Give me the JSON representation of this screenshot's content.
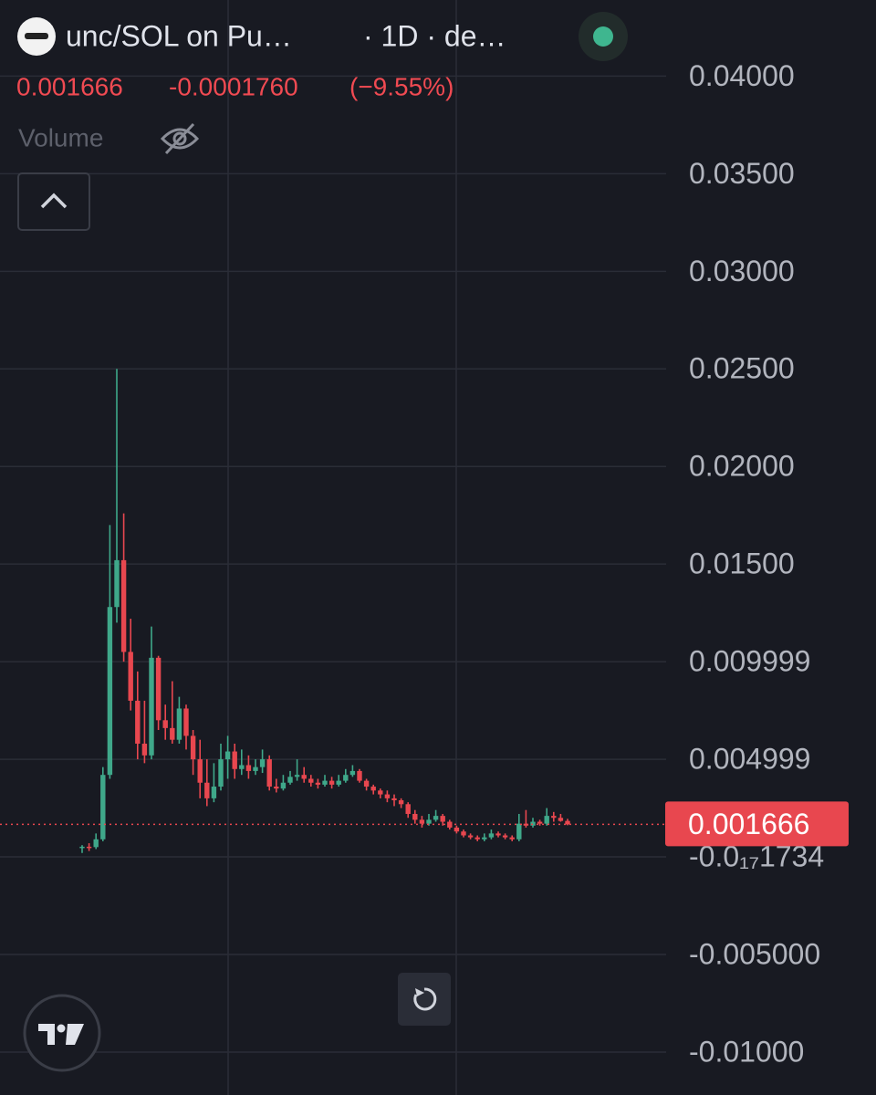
{
  "chart_data": {
    "type": "candlestick",
    "title": "unc/SOL on Pu…",
    "subtitle": "· 1D · de…",
    "last_price": 0.001666,
    "change": {
      "value": -0.000176,
      "label": "-0.0001760"
    },
    "change_percent": {
      "value": -9.55,
      "label": "(−9.55%)"
    },
    "volume_label": "Volume",
    "up_color": "#3fa88a",
    "down_color": "#e8474f",
    "grid": true,
    "ylim": [
      -0.0122,
      0.0439
    ],
    "yticks": [
      {
        "value": 0.04,
        "label": "0.04000"
      },
      {
        "value": 0.035,
        "label": "0.03500"
      },
      {
        "value": 0.03,
        "label": "0.03000"
      },
      {
        "value": 0.025,
        "label": "0.02500"
      },
      {
        "value": 0.02,
        "label": "0.02000"
      },
      {
        "value": 0.015,
        "label": "0.01500"
      },
      0.009999,
      0.004999,
      {
        "value": -1.734e-18,
        "label": "-0.0₁₇1734"
      },
      {
        "value": -0.005,
        "label": "-0.005000"
      },
      {
        "value": -0.01,
        "label": "-0.01000"
      }
    ],
    "open": [
      0.00045,
      0.00052,
      0.0005,
      0.0009,
      0.0042,
      0.0128,
      0.0152,
      0.0105,
      0.008,
      0.0058,
      0.0052,
      0.0102,
      0.007,
      0.0066,
      0.006,
      0.0076,
      0.0062,
      0.005,
      0.0038,
      0.003,
      0.0036,
      0.005,
      0.0054,
      0.0045,
      0.0047,
      0.0044,
      0.0046,
      0.005,
      0.0036,
      0.0035,
      0.0038,
      0.0041,
      0.0042,
      0.004,
      0.0038,
      0.0037,
      0.0039,
      0.0037,
      0.0039,
      0.0042,
      0.0044,
      0.0039,
      0.0036,
      0.0034,
      0.0032,
      0.003,
      0.0029,
      0.0027,
      0.0022,
      0.0019,
      0.0017,
      0.0019,
      0.0021,
      0.0018,
      0.0015,
      0.0013,
      0.0011,
      0.001,
      0.0009,
      0.001,
      0.0012,
      0.0011,
      0.001,
      0.0009,
      0.0017,
      0.0016,
      0.0018,
      0.0017,
      0.0021,
      0.002,
      0.001842
    ],
    "high": [
      0.0006,
      0.0007,
      0.0012,
      0.0046,
      0.017,
      0.025,
      0.0176,
      0.0122,
      0.0095,
      0.008,
      0.0118,
      0.0103,
      0.0078,
      0.009,
      0.0082,
      0.0078,
      0.0065,
      0.006,
      0.005,
      0.0048,
      0.0058,
      0.0062,
      0.0058,
      0.0055,
      0.0052,
      0.005,
      0.0055,
      0.0052,
      0.004,
      0.0042,
      0.0044,
      0.005,
      0.0046,
      0.0042,
      0.004,
      0.0042,
      0.0041,
      0.0042,
      0.0045,
      0.0047,
      0.0045,
      0.004,
      0.0037,
      0.0035,
      0.0034,
      0.0032,
      0.003,
      0.0028,
      0.0024,
      0.0021,
      0.0022,
      0.0024,
      0.0022,
      0.0019,
      0.0016,
      0.0014,
      0.0012,
      0.0011,
      0.0012,
      0.0014,
      0.0013,
      0.0012,
      0.0011,
      0.0022,
      0.0024,
      0.002,
      0.0019,
      0.0025,
      0.0023,
      0.0022,
      0.00195
    ],
    "low": [
      0.0002,
      0.0003,
      0.0004,
      0.0008,
      0.004,
      0.012,
      0.01,
      0.0075,
      0.005,
      0.0048,
      0.005,
      0.0065,
      0.006,
      0.0058,
      0.0058,
      0.0055,
      0.0042,
      0.003,
      0.0026,
      0.0028,
      0.0034,
      0.004,
      0.004,
      0.0042,
      0.004,
      0.0042,
      0.0043,
      0.0034,
      0.0033,
      0.0034,
      0.0037,
      0.0039,
      0.0038,
      0.0036,
      0.0035,
      0.0036,
      0.0035,
      0.0036,
      0.0038,
      0.0041,
      0.0038,
      0.0034,
      0.0032,
      0.003,
      0.0028,
      0.0026,
      0.0025,
      0.002,
      0.0017,
      0.0015,
      0.0016,
      0.0018,
      0.0016,
      0.0014,
      0.0012,
      0.001,
      0.0009,
      0.0008,
      0.0008,
      0.0009,
      0.001,
      0.0009,
      0.0008,
      0.0008,
      0.0015,
      0.0015,
      0.0016,
      0.0016,
      0.0018,
      0.0018,
      0.00162
    ],
    "close": [
      0.00052,
      0.0005,
      0.0009,
      0.0042,
      0.0128,
      0.0152,
      0.0105,
      0.008,
      0.0058,
      0.0052,
      0.0102,
      0.007,
      0.0066,
      0.006,
      0.0076,
      0.0062,
      0.005,
      0.0038,
      0.003,
      0.0036,
      0.005,
      0.0054,
      0.0045,
      0.0047,
      0.0044,
      0.0046,
      0.005,
      0.0036,
      0.0035,
      0.0038,
      0.0041,
      0.0042,
      0.004,
      0.0038,
      0.0037,
      0.0039,
      0.0037,
      0.0039,
      0.0042,
      0.0044,
      0.0039,
      0.0036,
      0.0034,
      0.0032,
      0.003,
      0.0029,
      0.0027,
      0.0022,
      0.0019,
      0.0017,
      0.0019,
      0.0021,
      0.0018,
      0.0015,
      0.0013,
      0.0011,
      0.001,
      0.0009,
      0.001,
      0.0012,
      0.0011,
      0.001,
      0.0009,
      0.0017,
      0.0016,
      0.0018,
      0.0017,
      0.0021,
      0.002,
      0.001842,
      0.001666
    ]
  }
}
